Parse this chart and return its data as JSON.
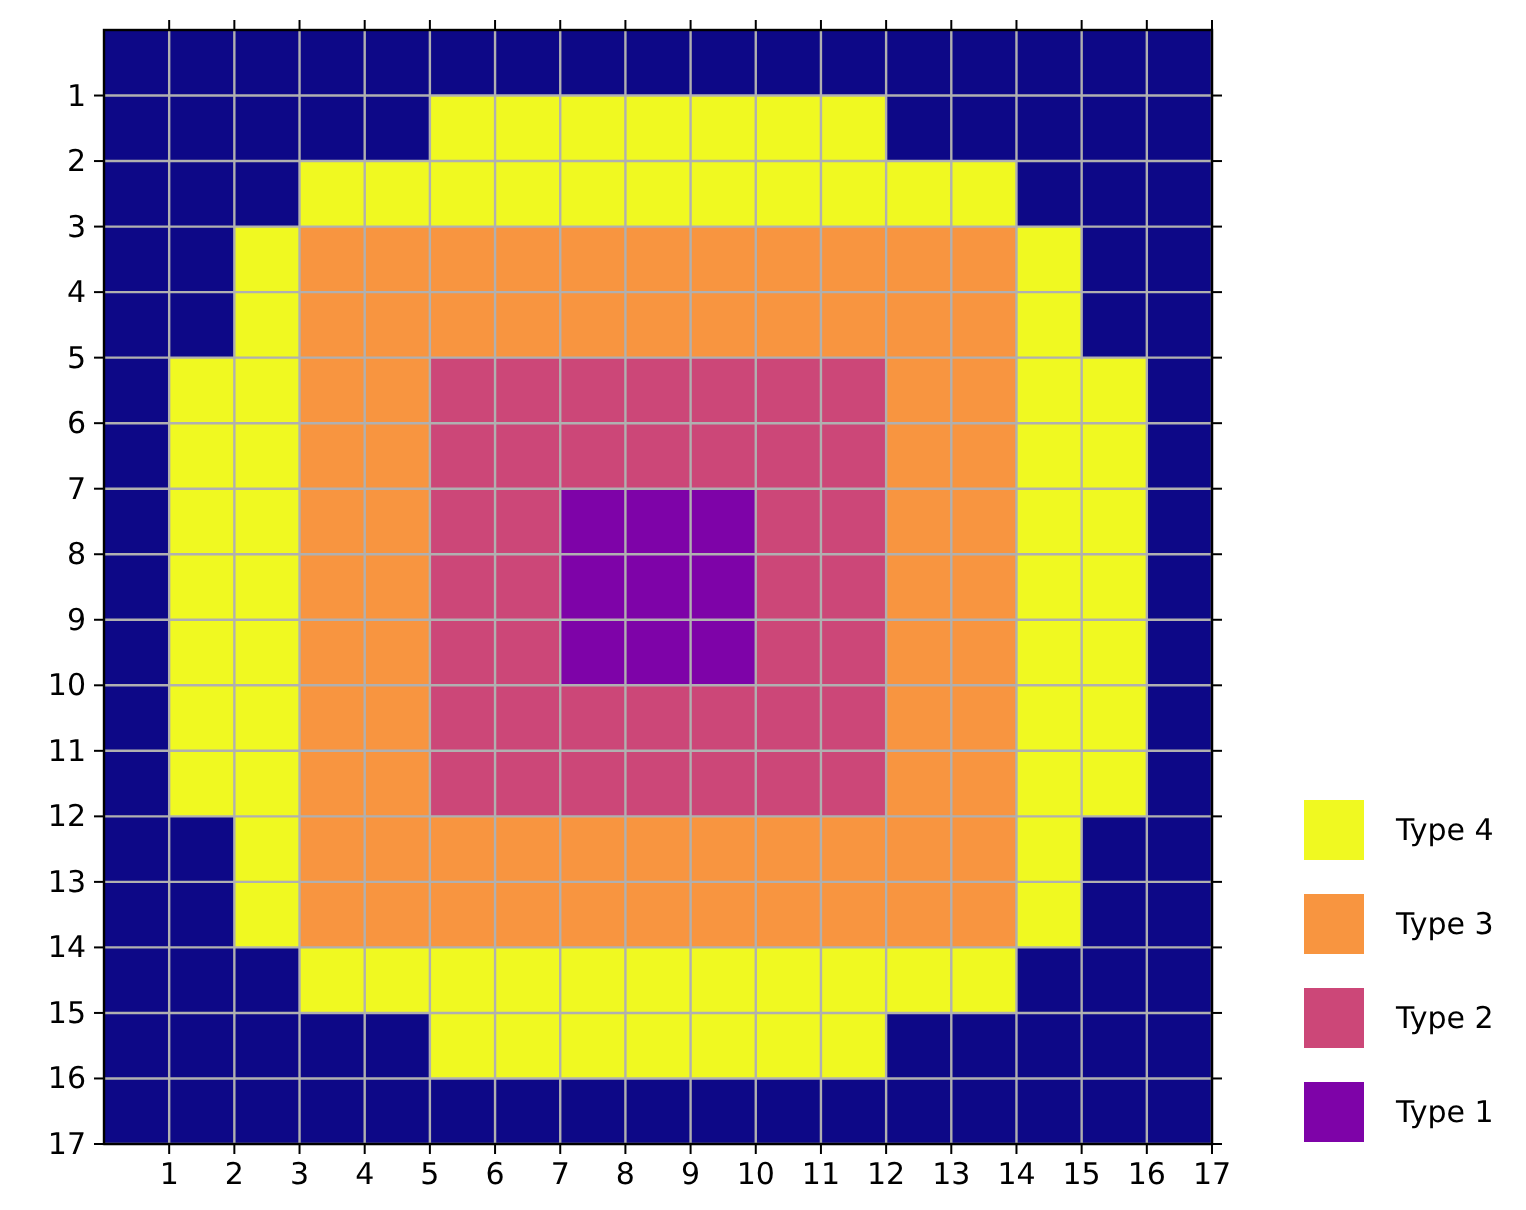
{
  "chart_data": {
    "type": "scatter",
    "marker": "square",
    "xlim": [
      0,
      17
    ],
    "xticks": [
      1,
      2,
      3,
      4,
      5,
      6,
      7,
      8,
      9,
      10,
      11,
      12,
      13,
      14,
      15,
      16,
      17
    ],
    "ylim": [
      17,
      0
    ],
    "yticks": [
      1,
      2,
      3,
      4,
      5,
      6,
      7,
      8,
      9,
      10,
      11,
      12,
      13,
      14,
      15,
      16,
      17
    ],
    "grid": true,
    "legend": "bottom right",
    "series": [
      {
        "name": "Type 4",
        "color": "#f0f921",
        "x": [
          5.5,
          6.5,
          7.5,
          8.5,
          9.5,
          10.5,
          11.5,
          3.5,
          4.5,
          5.5,
          6.5,
          7.5,
          8.5,
          9.5,
          10.5,
          11.5,
          12.5,
          13.5,
          2.5,
          14.5,
          2.5,
          14.5,
          1.5,
          2.5,
          14.5,
          15.5,
          1.5,
          2.5,
          14.5,
          15.5,
          1.5,
          2.5,
          14.5,
          15.5,
          1.5,
          2.5,
          14.5,
          15.5,
          1.5,
          2.5,
          14.5,
          15.5,
          1.5,
          2.5,
          14.5,
          15.5,
          1.5,
          2.5,
          14.5,
          15.5,
          2.5,
          14.5,
          2.5,
          14.5,
          3.5,
          4.5,
          5.5,
          6.5,
          7.5,
          8.5,
          9.5,
          10.5,
          11.5,
          12.5,
          13.5,
          5.5,
          6.5,
          7.5,
          8.5,
          9.5,
          10.5,
          11.5
        ],
        "values": [
          1.5,
          1.5,
          1.5,
          1.5,
          1.5,
          1.5,
          1.5,
          2.5,
          2.5,
          2.5,
          2.5,
          2.5,
          2.5,
          2.5,
          2.5,
          2.5,
          2.5,
          2.5,
          3.5,
          3.5,
          4.5,
          4.5,
          5.5,
          5.5,
          5.5,
          5.5,
          6.5,
          6.5,
          6.5,
          6.5,
          7.5,
          7.5,
          7.5,
          7.5,
          8.5,
          8.5,
          8.5,
          8.5,
          9.5,
          9.5,
          9.5,
          9.5,
          10.5,
          10.5,
          10.5,
          10.5,
          11.5,
          11.5,
          11.5,
          11.5,
          12.5,
          12.5,
          13.5,
          13.5,
          14.5,
          14.5,
          14.5,
          14.5,
          14.5,
          14.5,
          14.5,
          14.5,
          14.5,
          14.5,
          14.5,
          15.5,
          15.5,
          15.5,
          15.5,
          15.5,
          15.5,
          15.5
        ]
      },
      {
        "name": "Type 3",
        "color": "#f89540",
        "x": [
          3.5,
          4.5,
          5.5,
          6.5,
          7.5,
          8.5,
          9.5,
          10.5,
          11.5,
          12.5,
          13.5,
          3.5,
          4.5,
          5.5,
          6.5,
          7.5,
          8.5,
          9.5,
          10.5,
          11.5,
          12.5,
          13.5,
          3.5,
          4.5,
          12.5,
          13.5,
          3.5,
          4.5,
          12.5,
          13.5,
          3.5,
          4.5,
          12.5,
          13.5,
          3.5,
          4.5,
          12.5,
          13.5,
          3.5,
          4.5,
          12.5,
          13.5,
          3.5,
          4.5,
          12.5,
          13.5,
          3.5,
          4.5,
          12.5,
          13.5,
          3.5,
          4.5,
          5.5,
          6.5,
          7.5,
          8.5,
          9.5,
          10.5,
          11.5,
          12.5,
          13.5,
          3.5,
          4.5,
          5.5,
          6.5,
          7.5,
          8.5,
          9.5,
          10.5,
          11.5,
          12.5,
          13.5
        ],
        "values": [
          3.5,
          3.5,
          3.5,
          3.5,
          3.5,
          3.5,
          3.5,
          3.5,
          3.5,
          3.5,
          3.5,
          4.5,
          4.5,
          4.5,
          4.5,
          4.5,
          4.5,
          4.5,
          4.5,
          4.5,
          4.5,
          4.5,
          5.5,
          5.5,
          5.5,
          5.5,
          6.5,
          6.5,
          6.5,
          6.5,
          7.5,
          7.5,
          7.5,
          7.5,
          8.5,
          8.5,
          8.5,
          8.5,
          9.5,
          9.5,
          9.5,
          9.5,
          10.5,
          10.5,
          10.5,
          10.5,
          11.5,
          11.5,
          11.5,
          11.5,
          12.5,
          12.5,
          12.5,
          12.5,
          12.5,
          12.5,
          12.5,
          12.5,
          12.5,
          12.5,
          12.5,
          13.5,
          13.5,
          13.5,
          13.5,
          13.5,
          13.5,
          13.5,
          13.5,
          13.5,
          13.5,
          13.5
        ]
      },
      {
        "name": "Type 2",
        "color": "#cc4778",
        "x": [
          5.5,
          6.5,
          7.5,
          8.5,
          9.5,
          10.5,
          11.5,
          5.5,
          6.5,
          7.5,
          8.5,
          9.5,
          10.5,
          11.5,
          5.5,
          6.5,
          10.5,
          11.5,
          5.5,
          6.5,
          10.5,
          11.5,
          5.5,
          6.5,
          10.5,
          11.5,
          5.5,
          6.5,
          7.5,
          8.5,
          9.5,
          10.5,
          11.5,
          5.5,
          6.5,
          7.5,
          8.5,
          9.5,
          10.5,
          11.5
        ],
        "values": [
          5.5,
          5.5,
          5.5,
          5.5,
          5.5,
          5.5,
          5.5,
          6.5,
          6.5,
          6.5,
          6.5,
          6.5,
          6.5,
          6.5,
          7.5,
          7.5,
          7.5,
          7.5,
          8.5,
          8.5,
          8.5,
          8.5,
          9.5,
          9.5,
          9.5,
          9.5,
          10.5,
          10.5,
          10.5,
          10.5,
          10.5,
          10.5,
          10.5,
          11.5,
          11.5,
          11.5,
          11.5,
          11.5,
          11.5,
          11.5
        ]
      },
      {
        "name": "Type 1",
        "color": "#7e03a8",
        "x": [
          7.5,
          8.5,
          9.5,
          7.5,
          8.5,
          9.5,
          7.5,
          8.5,
          9.5
        ],
        "values": [
          7.5,
          7.5,
          7.5,
          8.5,
          8.5,
          8.5,
          9.5,
          9.5,
          9.5
        ]
      }
    ]
  }
}
